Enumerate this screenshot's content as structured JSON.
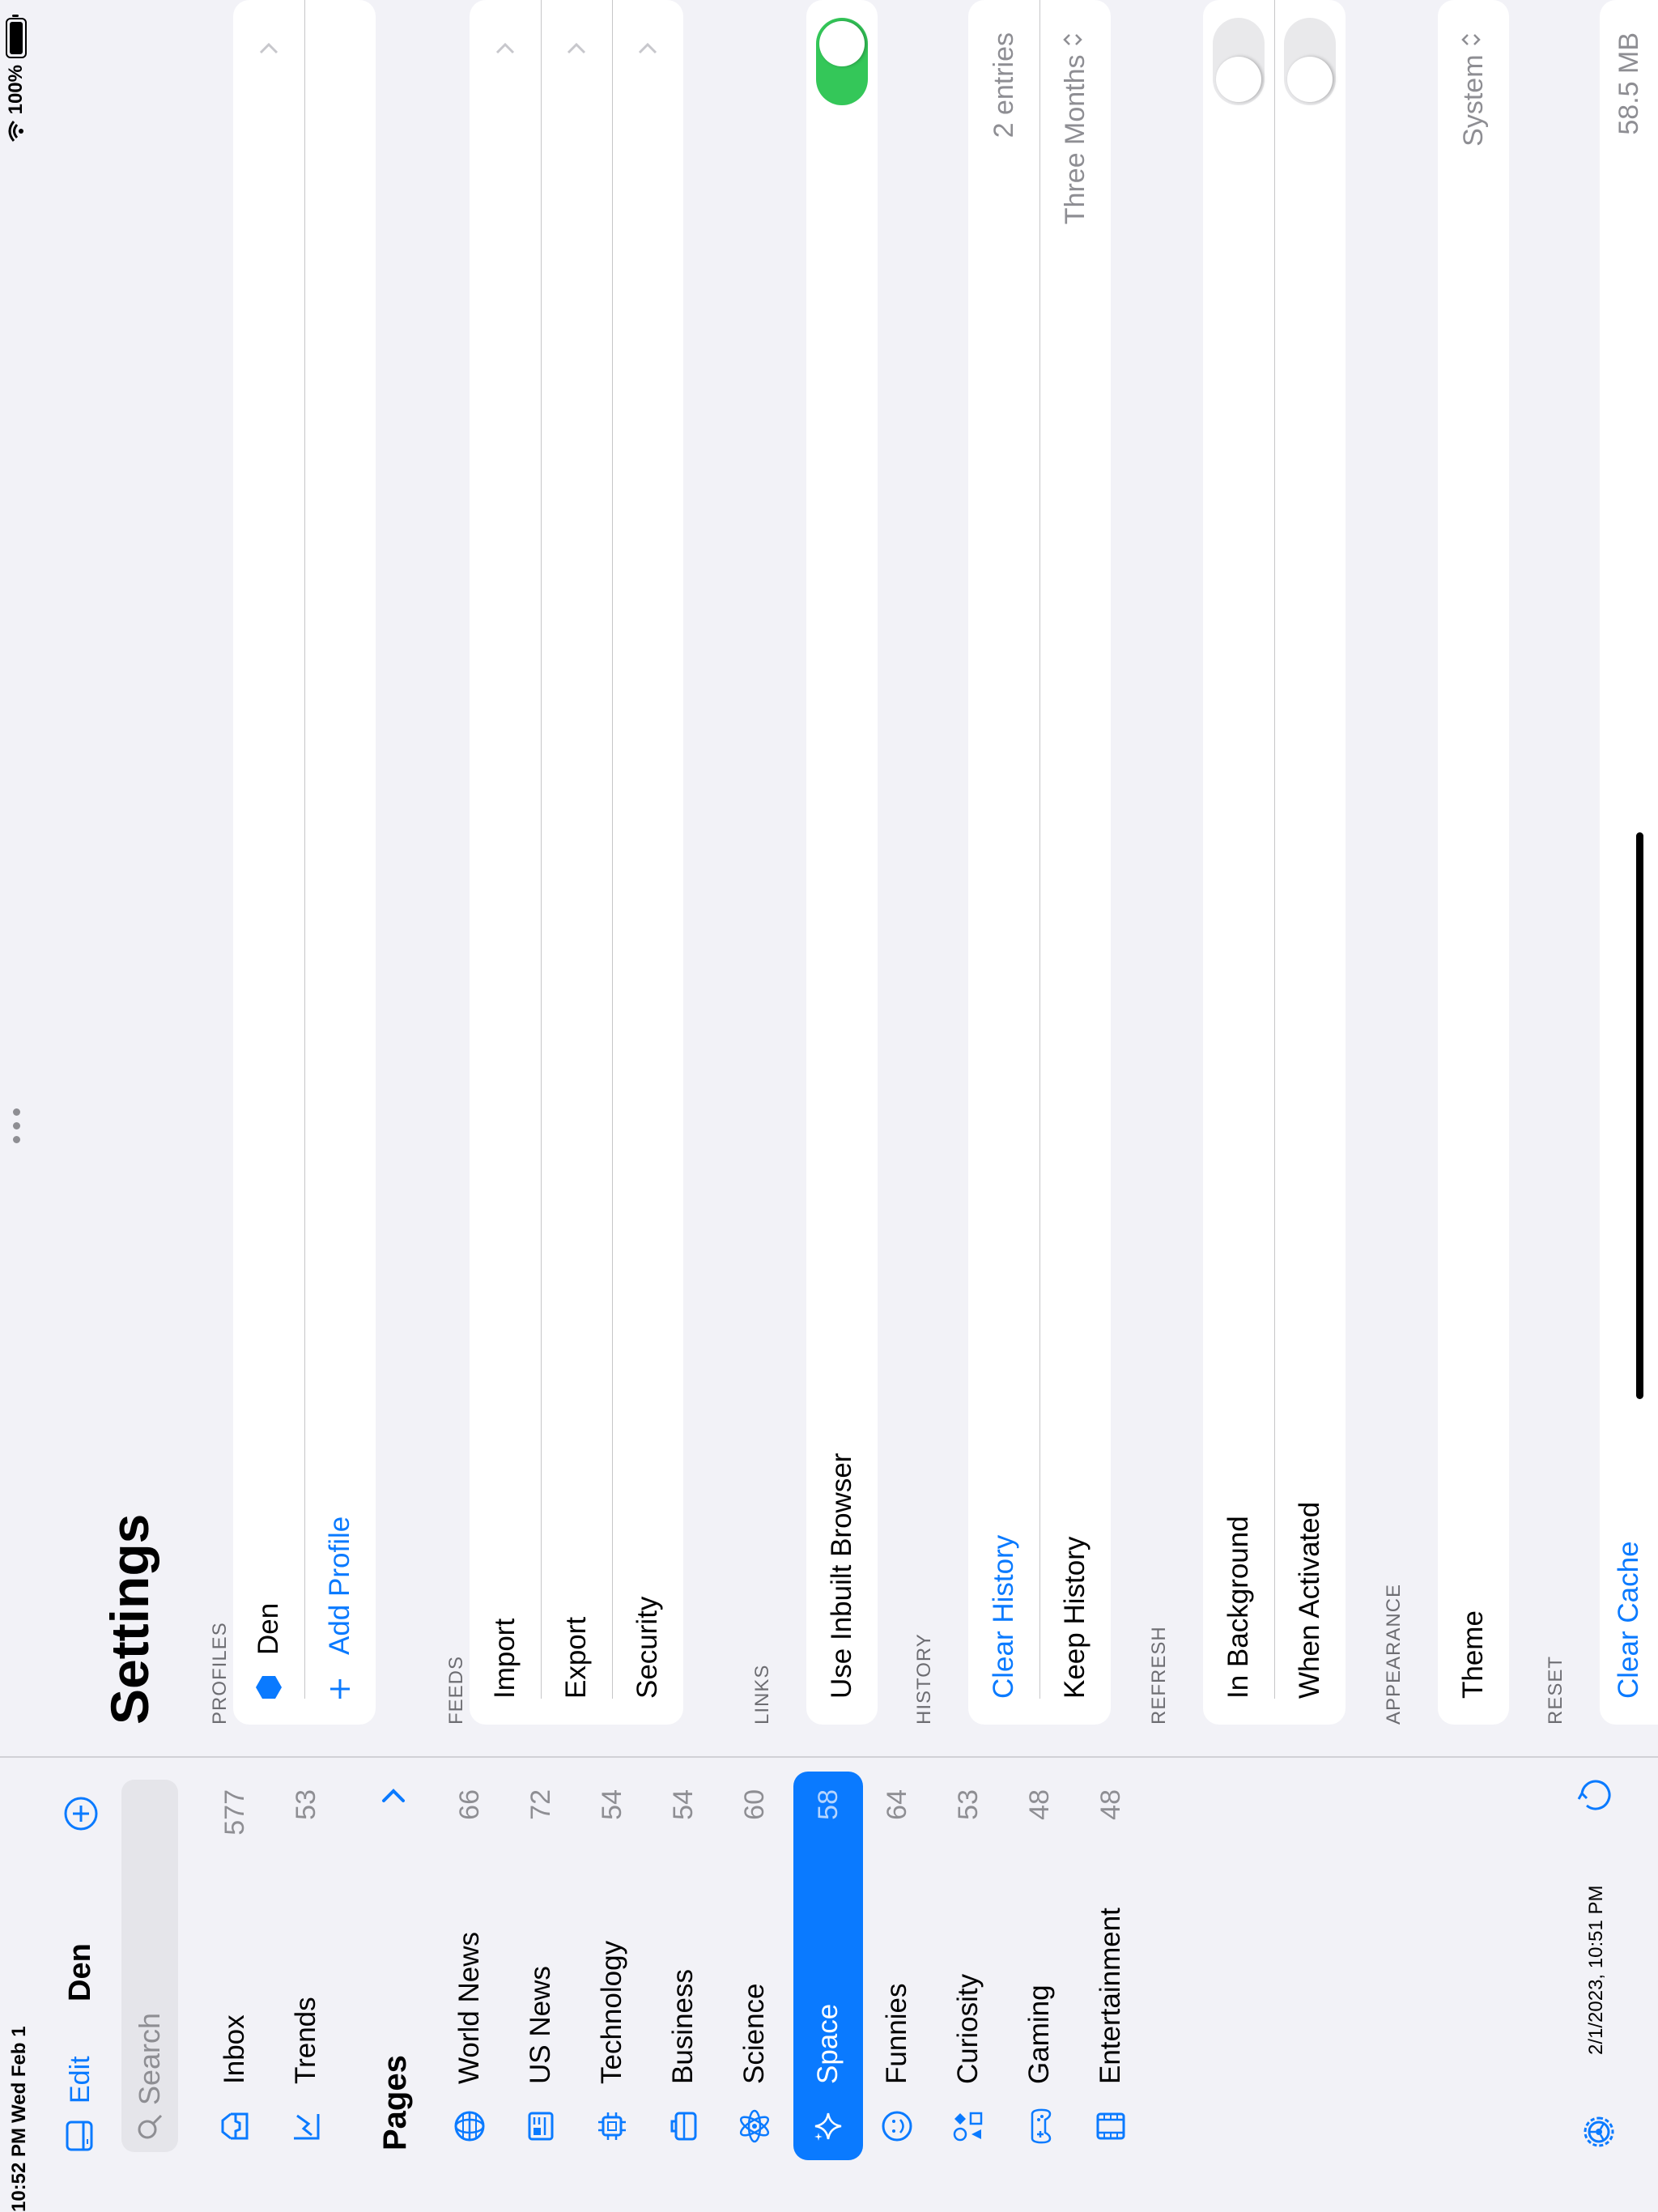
{
  "status": {
    "time": "10:52 PM",
    "date": "Wed Feb 1",
    "battery": "100%"
  },
  "sidebar": {
    "edit_label": "Edit",
    "profile_name": "Den",
    "search_placeholder": "Search",
    "top_items": [
      {
        "label": "Inbox",
        "count": "577",
        "icon": "inbox-icon"
      },
      {
        "label": "Trends",
        "count": "53",
        "icon": "trends-icon"
      }
    ],
    "pages_label": "Pages",
    "pages": [
      {
        "label": "World News",
        "count": "66",
        "icon": "globe-icon"
      },
      {
        "label": "US News",
        "count": "72",
        "icon": "newspaper-icon"
      },
      {
        "label": "Technology",
        "count": "54",
        "icon": "cpu-icon"
      },
      {
        "label": "Business",
        "count": "54",
        "icon": "briefcase-icon"
      },
      {
        "label": "Science",
        "count": "60",
        "icon": "atom-icon"
      },
      {
        "label": "Space",
        "count": "58",
        "icon": "sparkles-icon",
        "selected": true
      },
      {
        "label": "Funnies",
        "count": "64",
        "icon": "smiley-icon"
      },
      {
        "label": "Curiosity",
        "count": "53",
        "icon": "shapes-icon"
      },
      {
        "label": "Gaming",
        "count": "48",
        "icon": "gamepad-icon"
      },
      {
        "label": "Entertainment",
        "count": "48",
        "icon": "film-icon"
      }
    ],
    "footer_date": "2/1/2023, 10:51 PM"
  },
  "main": {
    "title": "Settings",
    "profiles": {
      "header": "PROFILES",
      "profile": "Den",
      "add_label": "Add Profile"
    },
    "feeds": {
      "header": "FEEDS",
      "items": [
        "Import",
        "Export",
        "Security"
      ]
    },
    "links": {
      "header": "LINKS",
      "inbuilt_browser": "Use Inbuilt Browser",
      "inbuilt_on": true
    },
    "history": {
      "header": "HISTORY",
      "clear": "Clear History",
      "entries": "2 entries",
      "keep": "Keep History",
      "keep_value": "Three Months"
    },
    "refresh": {
      "header": "REFRESH",
      "background": "In Background",
      "activated": "When Activated"
    },
    "appearance": {
      "header": "APPEARANCE",
      "theme": "Theme",
      "theme_value": "System"
    },
    "reset": {
      "header": "RESET",
      "clear_cache": "Clear Cache",
      "cache_size": "58.5 MB"
    }
  },
  "colors": {
    "accent": "#0a7aff",
    "toggle_on": "#34c759",
    "background": "#f2f2f7"
  }
}
